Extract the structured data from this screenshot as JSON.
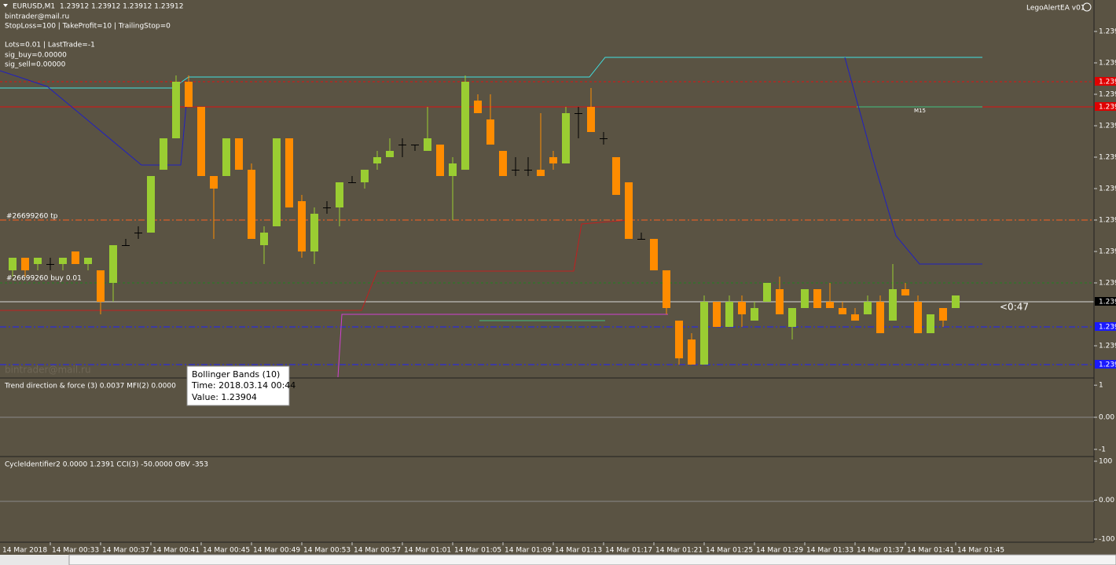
{
  "header": {
    "symbol": "EURUSD,M1",
    "ohlc": "1.23912 1.23912 1.23912 1.23912",
    "lines": [
      "bintrader@mail.ru",
      "StopLoss=100 | TakeProfit=10 | TrailingStop=0",
      "Lots=0.01 | LastTrade=-1",
      "sig_buy=0.00000",
      "sig_sell=0.00000"
    ]
  },
  "ea_name": "LegoAlertEA v01",
  "order_labels": [
    "#26699260 tp",
    "#26699260 buy 0.01"
  ],
  "level_label": "M15",
  "countdown": "<0:47",
  "watermark": "bintrader@mail.ru",
  "tooltip": {
    "title": "Bollinger Bands (10)",
    "time": "Time: 2018.03.14 00:44",
    "value": "Value: 1.23904"
  },
  "chart_data": {
    "type": "candlestick",
    "up_color": "#9acd32",
    "down_color": "#ff8c00",
    "doji_color": "#000000",
    "ylim": [
      1.239,
      1.2396
    ],
    "yticks": [
      {
        "value": 1.23955,
        "label": "1.239"
      },
      {
        "value": 1.2395,
        "label": "1.239"
      },
      {
        "value": 1.23945,
        "label": "1.239"
      },
      {
        "value": 1.2394,
        "label": "1.239"
      },
      {
        "value": 1.23935,
        "label": "1.239"
      },
      {
        "value": 1.2393,
        "label": "1.239"
      },
      {
        "value": 1.23925,
        "label": "1.239"
      },
      {
        "value": 1.2392,
        "label": "1.239"
      },
      {
        "value": 1.23915,
        "label": "1.239"
      },
      {
        "value": 1.23905,
        "label": "1.239"
      }
    ],
    "price_tags": [
      {
        "value": 1.23947,
        "label": "1.239",
        "color": "#e00000"
      },
      {
        "value": 1.23943,
        "label": "1.239",
        "color": "#e00000"
      },
      {
        "value": 1.23912,
        "label": "1.239",
        "color": "#000000"
      },
      {
        "value": 1.23908,
        "label": "1.239",
        "color": "#1a1aff"
      },
      {
        "value": 1.23902,
        "label": "1.239",
        "color": "#1a1aff"
      }
    ],
    "x_labels": [
      "14 Mar 2018",
      "14 Mar 00:33",
      "14 Mar 00:37",
      "14 Mar 00:41",
      "14 Mar 00:45",
      "14 Mar 00:49",
      "14 Mar 00:53",
      "14 Mar 00:57",
      "14 Mar 01:01",
      "14 Mar 01:05",
      "14 Mar 01:09",
      "14 Mar 01:13",
      "14 Mar 01:17",
      "14 Mar 01:21",
      "14 Mar 01:25",
      "14 Mar 01:29",
      "14 Mar 01:33",
      "14 Mar 01:37",
      "14 Mar 01:41",
      "14 Mar 01:45"
    ],
    "open": [
      1.23917,
      1.23919,
      1.23918,
      1.23918,
      1.23918,
      1.2392,
      1.23918,
      1.23917,
      1.23915,
      1.23921,
      1.23923,
      1.23923,
      1.23933,
      1.23938,
      1.23947,
      1.23943,
      1.23932,
      1.23932,
      1.23938,
      1.23933,
      1.23921,
      1.23924,
      1.23938,
      1.23928,
      1.2392,
      1.23927,
      1.23927,
      1.23931,
      1.23931,
      1.23934,
      1.23935,
      1.23937,
      1.23937,
      1.23936,
      1.23937,
      1.23932,
      1.23933,
      1.23944,
      1.23941,
      1.23936,
      1.23933,
      1.23933,
      1.23933,
      1.23935,
      1.23934,
      1.23942,
      1.23943,
      1.23938,
      1.23935,
      1.23931,
      1.23922,
      1.23922,
      1.23917,
      1.23909,
      1.23906,
      1.23902,
      1.23912,
      1.23908,
      1.23912,
      1.23909,
      1.23912,
      1.23914,
      1.23908,
      1.23911,
      1.23914,
      1.23912,
      1.23911,
      1.2391,
      1.2391,
      1.23912,
      1.23909,
      1.23914,
      1.23912,
      1.23907,
      1.23911,
      1.23911
    ],
    "high": [
      1.23919,
      1.23919,
      1.23919,
      1.23919,
      1.23919,
      1.2392,
      1.23919,
      1.23917,
      1.23921,
      1.23922,
      1.23924,
      1.23932,
      1.23938,
      1.23948,
      1.23948,
      1.23943,
      1.23932,
      1.23938,
      1.23938,
      1.23934,
      1.23924,
      1.23938,
      1.23938,
      1.23929,
      1.23927,
      1.23928,
      1.23931,
      1.23932,
      1.23933,
      1.23936,
      1.23938,
      1.23938,
      1.23937,
      1.23943,
      1.23937,
      1.23935,
      1.23948,
      1.23945,
      1.23945,
      1.23936,
      1.23935,
      1.23935,
      1.23942,
      1.23936,
      1.23943,
      1.23943,
      1.23946,
      1.23939,
      1.23935,
      1.23931,
      1.23923,
      1.23922,
      1.23917,
      1.23909,
      1.23907,
      1.23913,
      1.23912,
      1.23913,
      1.23913,
      1.23912,
      1.23915,
      1.23916,
      1.23911,
      1.23914,
      1.23914,
      1.23915,
      1.23912,
      1.23911,
      1.23913,
      1.23913,
      1.23918,
      1.23915,
      1.23913,
      1.2391,
      1.23911,
      1.23913
    ],
    "low": [
      1.23916,
      1.23916,
      1.23917,
      1.23917,
      1.23917,
      1.23918,
      1.23917,
      1.2391,
      1.23912,
      1.23921,
      1.23922,
      1.23923,
      1.23933,
      1.23938,
      1.23943,
      1.23932,
      1.23922,
      1.23932,
      1.23933,
      1.23922,
      1.23918,
      1.23924,
      1.23927,
      1.23919,
      1.23918,
      1.23926,
      1.23924,
      1.23931,
      1.2393,
      1.23933,
      1.23935,
      1.23935,
      1.23936,
      1.23936,
      1.23932,
      1.23925,
      1.23933,
      1.23942,
      1.23937,
      1.23932,
      1.23932,
      1.23932,
      1.23932,
      1.23933,
      1.23934,
      1.23938,
      1.23939,
      1.23937,
      1.23929,
      1.23922,
      1.23922,
      1.23917,
      1.2391,
      1.23902,
      1.23902,
      1.23902,
      1.23908,
      1.23908,
      1.23908,
      1.23909,
      1.23912,
      1.2391,
      1.23906,
      1.23911,
      1.23911,
      1.23911,
      1.2391,
      1.23909,
      1.2391,
      1.23907,
      1.23909,
      1.23913,
      1.23907,
      1.23907,
      1.23908,
      1.23911
    ],
    "close": [
      1.23919,
      1.23917,
      1.23919,
      1.23918,
      1.23919,
      1.23918,
      1.23919,
      1.23912,
      1.23921,
      1.23921,
      1.23923,
      1.23932,
      1.23938,
      1.23947,
      1.23943,
      1.23932,
      1.2393,
      1.23938,
      1.23933,
      1.23922,
      1.23923,
      1.23938,
      1.23927,
      1.2392,
      1.23926,
      1.23927,
      1.23931,
      1.23931,
      1.23933,
      1.23935,
      1.23936,
      1.23937,
      1.23937,
      1.23938,
      1.23932,
      1.23934,
      1.23947,
      1.23942,
      1.23937,
      1.23932,
      1.23933,
      1.23933,
      1.23932,
      1.23934,
      1.23942,
      1.23942,
      1.23939,
      1.23938,
      1.23929,
      1.23922,
      1.23922,
      1.23917,
      1.23911,
      1.23903,
      1.23902,
      1.23912,
      1.23908,
      1.23912,
      1.2391,
      1.23911,
      1.23915,
      1.2391,
      1.23911,
      1.23914,
      1.23911,
      1.23911,
      1.2391,
      1.23909,
      1.23912,
      1.23907,
      1.23914,
      1.23913,
      1.23907,
      1.2391,
      1.23909,
      1.23913
    ]
  },
  "panel1": {
    "label": "Trend direction & force (3) 0.0037   MFI(2) 0.0000",
    "ylim": [
      -1.2,
      1.2
    ],
    "yticks": [
      1,
      {
        "value": 0,
        "label": "0.00"
      },
      -1
    ]
  },
  "panel2": {
    "label": "CycleIdentifier2 0.0000 1.2391   CCI(3) -50.0000   OBV -353",
    "ylim": [
      -108,
      108
    ],
    "yticks": [
      100,
      {
        "value": 0,
        "label": "0.00"
      },
      -100
    ]
  }
}
